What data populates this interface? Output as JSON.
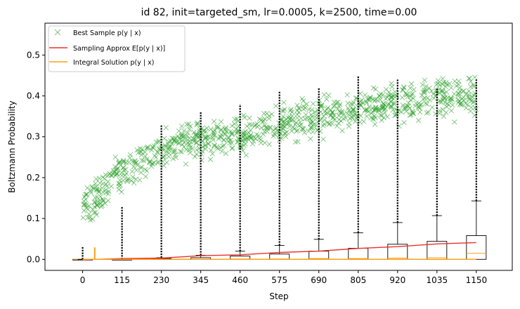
{
  "chart_data": {
    "type": "scatter",
    "title": "id 82, init=targeted_sm, lr=0.0005, k=2500, time=0.00",
    "xlabel": "Step",
    "ylabel": "Boltzmann Probability",
    "xlim": [
      -110,
      1255
    ],
    "ylim": [
      -0.027,
      0.578
    ],
    "x_ticks": [
      0,
      115,
      230,
      345,
      460,
      575,
      690,
      805,
      920,
      1035,
      1150
    ],
    "y_ticks": [
      0.0,
      0.1,
      0.2,
      0.3,
      0.4,
      0.5
    ],
    "y_tick_labels": [
      "0.0",
      "0.1",
      "0.2",
      "0.3",
      "0.4",
      "0.5"
    ],
    "grid": false,
    "legend_position": "top-left",
    "colors": {
      "best_sample": "#2ca02c",
      "sampling_approx": "#e8322d",
      "integral_solution": "#ff9f1a",
      "boxes": "#000000"
    },
    "series": [
      {
        "name": "Best Sample p(y | x)",
        "kind": "scatter-x",
        "trend_points": [
          [
            0,
            0.12
          ],
          [
            115,
            0.22
          ],
          [
            230,
            0.27
          ],
          [
            345,
            0.29
          ],
          [
            460,
            0.31
          ],
          [
            575,
            0.33
          ],
          [
            690,
            0.345
          ],
          [
            805,
            0.37
          ],
          [
            920,
            0.38
          ],
          [
            1035,
            0.395
          ],
          [
            1150,
            0.4
          ]
        ],
        "spread": 0.05
      },
      {
        "name": "Sampling Approx E[p(y | x)]",
        "kind": "line",
        "x": [
          0,
          115,
          230,
          345,
          460,
          575,
          690,
          805,
          920,
          1035,
          1150
        ],
        "y": [
          0.0,
          0.001,
          0.004,
          0.008,
          0.012,
          0.016,
          0.021,
          0.026,
          0.032,
          0.037,
          0.042
        ]
      },
      {
        "name": "Integral Solution p(y | x)",
        "kind": "line",
        "x": [
          0,
          35,
          35,
          36,
          36,
          1150
        ],
        "y": [
          0.0,
          0.0,
          0.028,
          0.028,
          0.0,
          0.0
        ]
      }
    ],
    "boxplots": [
      {
        "x": 0,
        "q1": 0.0,
        "median": 0.0,
        "q3": 0.0,
        "whisker_high": 0.0,
        "outlier_max": 0.03
      },
      {
        "x": 115,
        "q1": 0.0,
        "median": 0.0,
        "q3": 0.0,
        "whisker_high": 0.0,
        "outlier_max": 0.13
      },
      {
        "x": 230,
        "q1": 0.0,
        "median": 0.0,
        "q3": 0.002,
        "whisker_high": 0.004,
        "outlier_max": 0.33
      },
      {
        "x": 345,
        "q1": 0.0,
        "median": 0.0,
        "q3": 0.004,
        "whisker_high": 0.01,
        "outlier_max": 0.36
      },
      {
        "x": 460,
        "q1": 0.0,
        "median": 0.001,
        "q3": 0.008,
        "whisker_high": 0.02,
        "outlier_max": 0.38
      },
      {
        "x": 575,
        "q1": 0.0,
        "median": 0.001,
        "q3": 0.013,
        "whisker_high": 0.034,
        "outlier_max": 0.41
      },
      {
        "x": 690,
        "q1": 0.0,
        "median": 0.002,
        "q3": 0.02,
        "whisker_high": 0.049,
        "outlier_max": 0.42
      },
      {
        "x": 805,
        "q1": 0.0,
        "median": 0.002,
        "q3": 0.027,
        "whisker_high": 0.065,
        "outlier_max": 0.45
      },
      {
        "x": 920,
        "q1": 0.0,
        "median": 0.003,
        "q3": 0.037,
        "whisker_high": 0.09,
        "outlier_max": 0.44
      },
      {
        "x": 1035,
        "q1": 0.0,
        "median": 0.004,
        "q3": 0.044,
        "whisker_high": 0.107,
        "outlier_max": 0.42
      },
      {
        "x": 1150,
        "q1": 0.0,
        "median": 0.015,
        "q3": 0.058,
        "whisker_high": 0.143,
        "outlier_max": 0.44
      }
    ]
  }
}
